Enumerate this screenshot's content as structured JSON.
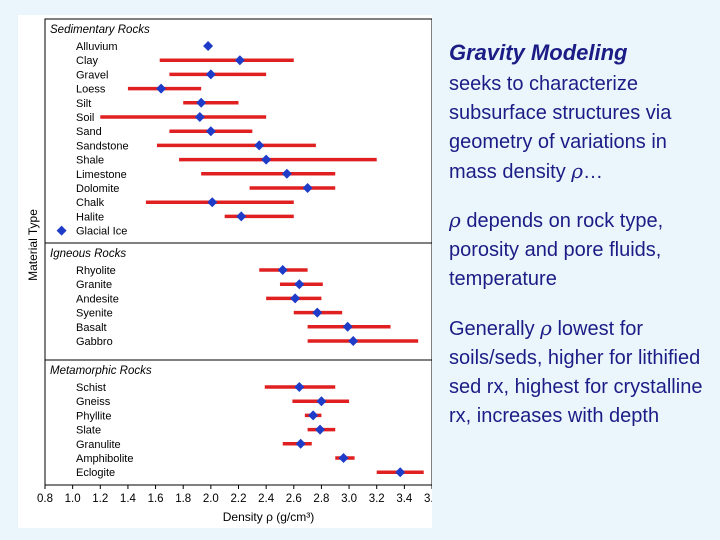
{
  "text_panel": {
    "heading": "Gravity Modeling",
    "p1_text": "seeks to characterize subsurface structures via geometry of variations in mass density",
    "rho_symbol": "ρ",
    "p1_ellipsis": "…",
    "p2_text": " depends on rock type, porosity and pore fluids, temperature",
    "p3_prefix": "Generally ",
    "p3_suffix": " lowest for soils/seds, higher for lithified sed rx, highest for crystalline rx, increases with depth"
  },
  "colors": {
    "range_bar": "#e02020",
    "marker": "#1e3cc8",
    "frame": "#000000",
    "text": "#1c1c86"
  },
  "chart_data": {
    "type": "range-dot",
    "xlabel": "Density ρ (g/cm³)",
    "ylabel": "Material Type",
    "xlim": [
      0.8,
      3.6
    ],
    "xticks": [
      "0.8",
      "1.0",
      "1.2",
      "1.4",
      "1.6",
      "1.8",
      "2.0",
      "2.2",
      "2.4",
      "2.6",
      "2.8",
      "3.0",
      "3.2",
      "3.4",
      "3.6"
    ],
    "grid": false,
    "groups": [
      {
        "name": "Sedimentary Rocks",
        "items": [
          {
            "label": "Alluvium",
            "mean": 1.98,
            "min": null,
            "max": null
          },
          {
            "label": "Clay",
            "mean": 2.21,
            "min": 1.63,
            "max": 2.6
          },
          {
            "label": "Gravel",
            "mean": 2.0,
            "min": 1.7,
            "max": 2.4
          },
          {
            "label": "Loess",
            "mean": 1.64,
            "min": 1.4,
            "max": 1.93
          },
          {
            "label": "Silt",
            "mean": 1.93,
            "min": 1.8,
            "max": 2.2
          },
          {
            "label": "Soil",
            "mean": 1.92,
            "min": 1.2,
            "max": 2.4
          },
          {
            "label": "Sand",
            "mean": 2.0,
            "min": 1.7,
            "max": 2.3
          },
          {
            "label": "Sandstone",
            "mean": 2.35,
            "min": 1.61,
            "max": 2.76
          },
          {
            "label": "Shale",
            "mean": 2.4,
            "min": 1.77,
            "max": 3.2
          },
          {
            "label": "Limestone",
            "mean": 2.55,
            "min": 1.93,
            "max": 2.9
          },
          {
            "label": "Dolomite",
            "mean": 2.7,
            "min": 2.28,
            "max": 2.9
          },
          {
            "label": "Chalk",
            "mean": 2.01,
            "min": 1.53,
            "max": 2.6
          },
          {
            "label": "Halite",
            "mean": 2.22,
            "min": 2.1,
            "max": 2.6
          },
          {
            "label": "Glacial Ice",
            "mean": 0.92,
            "min": null,
            "max": null
          }
        ]
      },
      {
        "name": "Igneous Rocks",
        "items": [
          {
            "label": "Rhyolite",
            "mean": 2.52,
            "min": 2.35,
            "max": 2.7
          },
          {
            "label": "Granite",
            "mean": 2.64,
            "min": 2.5,
            "max": 2.81
          },
          {
            "label": "Andesite",
            "mean": 2.61,
            "min": 2.4,
            "max": 2.8
          },
          {
            "label": "Syenite",
            "mean": 2.77,
            "min": 2.6,
            "max": 2.95
          },
          {
            "label": "Basalt",
            "mean": 2.99,
            "min": 2.7,
            "max": 3.3
          },
          {
            "label": "Gabbro",
            "mean": 3.03,
            "min": 2.7,
            "max": 3.5
          }
        ]
      },
      {
        "name": "Metamorphic Rocks",
        "items": [
          {
            "label": "Schist",
            "mean": 2.64,
            "min": 2.39,
            "max": 2.9
          },
          {
            "label": "Gneiss",
            "mean": 2.8,
            "min": 2.59,
            "max": 3.0
          },
          {
            "label": "Phyllite",
            "mean": 2.74,
            "min": 2.68,
            "max": 2.8
          },
          {
            "label": "Slate",
            "mean": 2.79,
            "min": 2.7,
            "max": 2.9
          },
          {
            "label": "Granulite",
            "mean": 2.65,
            "min": 2.52,
            "max": 2.73
          },
          {
            "label": "Amphibolite",
            "mean": 2.96,
            "min": 2.9,
            "max": 3.04
          },
          {
            "label": "Eclogite",
            "mean": 3.37,
            "min": 3.2,
            "max": 3.54
          }
        ]
      }
    ]
  }
}
